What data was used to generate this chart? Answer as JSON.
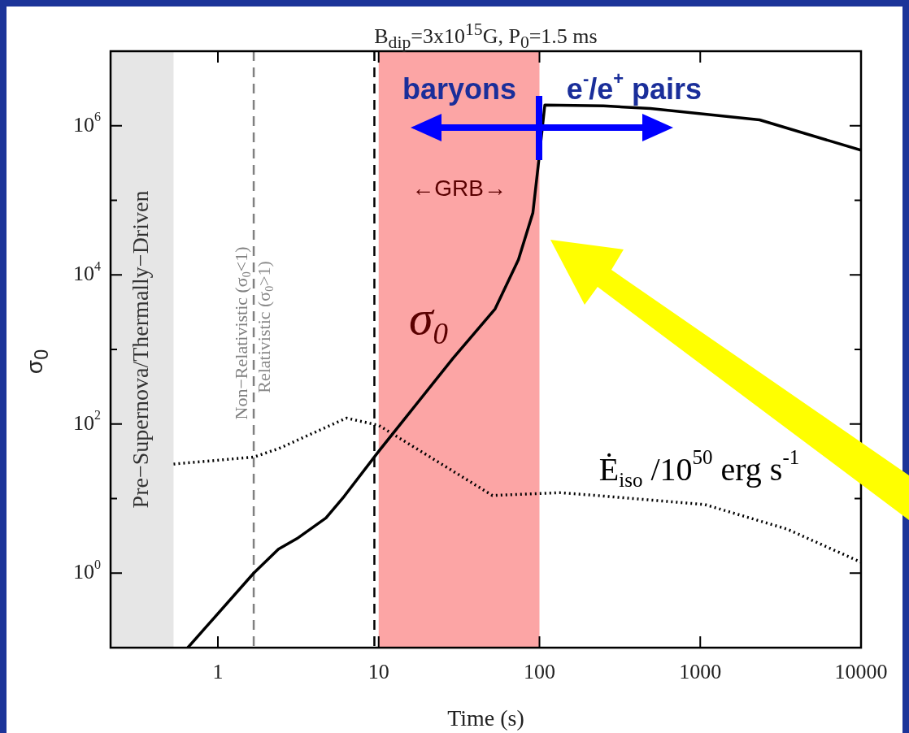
{
  "chart_data": {
    "type": "line",
    "title": "B$_{dip}$=3x10$^{15}$G,  P$_{0}$=1.5  ms",
    "xlabel": "Time (s)",
    "ylabel": "σ$_{0}$",
    "series": [
      {
        "name": "σ$_{0}$",
        "color": "#000000",
        "line_style": "solid",
        "x": [
          0.65,
          1.67,
          2.38,
          3.1,
          4.7,
          6.1,
          10,
          29,
          53,
          74,
          91,
          99,
          108,
          250,
          490,
          2340,
          10000
        ],
        "values": [
          0.1,
          1.0,
          2.1,
          2.9,
          5.5,
          10.7,
          43,
          760,
          3500,
          16000,
          68000,
          340000,
          1900000,
          1850000,
          1700000,
          1200000,
          470000
        ]
      },
      {
        "name": "Ė$_{iso}$ /10$^{50}$ erg s$^{-1}$",
        "color": "#000000",
        "line_style": "dotted",
        "x": [
          0.53,
          1.67,
          2.4,
          6.3,
          10,
          51,
          133,
          226,
          1070,
          3460,
          10000
        ],
        "values": [
          29,
          36,
          47,
          120,
          96,
          11,
          12,
          11,
          8.3,
          3.9,
          1.4
        ]
      }
    ],
    "log": "xy",
    "xlim": [
      0.215,
      10000
    ],
    "ylim": [
      0.1,
      10000000
    ],
    "xticks": [
      1,
      10,
      100,
      1000,
      10000
    ],
    "yticks": [
      {
        "value": 1,
        "label": "10$^{0}$"
      },
      {
        "value": 10,
        "label": null
      },
      {
        "value": 100,
        "label": "10$^{2}$"
      },
      {
        "value": 1000,
        "label": null
      },
      {
        "value": 10000,
        "label": "10$^{4}$"
      },
      {
        "value": 100000,
        "label": null
      },
      {
        "value": 1000000,
        "label": "10$^{6}$"
      }
    ],
    "bands": [
      {
        "axis": "x",
        "from": 0.215,
        "to": 0.53,
        "label": "Pre−Supernova/Thermally−Driven",
        "color": "#e6e6e6"
      },
      {
        "axis": "x",
        "from": 10,
        "to": 100,
        "label": "←GRB→",
        "color": "#fca5a5"
      }
    ],
    "ref_lines": [
      {
        "axis": "x",
        "value": 1.67,
        "label": "Non−Relativistic (σ$_{0}$<1)",
        "color": "#808080",
        "line_style": "dashed"
      },
      {
        "axis": "x",
        "value": 9.4,
        "label": null,
        "color": "#000000",
        "line_style": "dashed"
      }
    ],
    "annotations": [
      {
        "text": "Relativistic (σ$_{0}$>1)",
        "x": 1.67,
        "y": 2000
      },
      "baryons",
      "e$^{-}$/e$^{+}$ pairs"
    ],
    "grid": false,
    "legend": false,
    "marker": "none"
  }
}
